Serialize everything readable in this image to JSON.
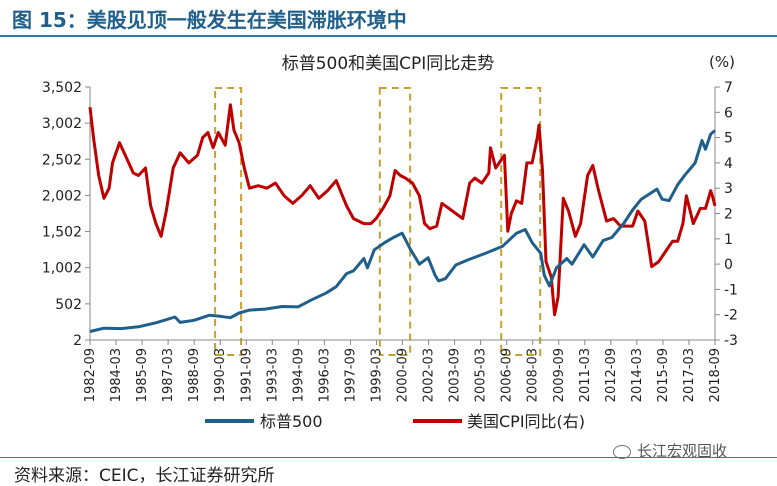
{
  "figure_title": "图 15：美股见顶一般发生在美国滞胀环境中",
  "source_text": "资料来源：CEIC，长江证券研究所",
  "watermark_text": "长江宏观固收",
  "chart_data": {
    "type": "line",
    "title": "标普500和美国CPI同比走势",
    "y2_unit": "(%)",
    "y_ticks": [
      "3,502",
      "3,002",
      "2,502",
      "2,002",
      "1,502",
      "1,002",
      "502",
      "2"
    ],
    "y2_ticks": [
      "7",
      "6",
      "5",
      "4",
      "3",
      "2",
      "1",
      "0",
      "-1",
      "-2",
      "-3"
    ],
    "ylim": [
      2,
      3502
    ],
    "y2lim": [
      -3,
      7
    ],
    "x_ticks": [
      "1982-09",
      "1984-03",
      "1985-09",
      "1987-03",
      "1988-09",
      "1990-03",
      "1991-09",
      "1993-03",
      "1994-09",
      "1996-03",
      "1997-09",
      "1999-03",
      "2000-09",
      "2002-03",
      "2003-09",
      "2005-03",
      "2006-09",
      "2008-03",
      "2009-09",
      "2011-03",
      "2012-09",
      "2014-03",
      "2015-09",
      "2017-03",
      "2018-09"
    ],
    "highlight_ranges": [
      [
        "1989-12",
        "1991-06"
      ],
      [
        "1999-06",
        "2001-03"
      ],
      [
        "2006-06",
        "2008-09"
      ]
    ],
    "series": [
      {
        "name": "标普500",
        "axis": "left",
        "color": "#1f5f8b",
        "points": [
          [
            1982.7,
            120
          ],
          [
            1983.5,
            165
          ],
          [
            1984.5,
            160
          ],
          [
            1985.5,
            185
          ],
          [
            1986.5,
            240
          ],
          [
            1987.6,
            320
          ],
          [
            1987.9,
            245
          ],
          [
            1988.7,
            275
          ],
          [
            1989.6,
            345
          ],
          [
            1990.2,
            330
          ],
          [
            1990.8,
            310
          ],
          [
            1991.3,
            375
          ],
          [
            1991.9,
            415
          ],
          [
            1992.8,
            430
          ],
          [
            1993.8,
            465
          ],
          [
            1994.7,
            460
          ],
          [
            1995.5,
            560
          ],
          [
            1996.3,
            650
          ],
          [
            1996.9,
            740
          ],
          [
            1997.5,
            920
          ],
          [
            1997.9,
            960
          ],
          [
            1998.5,
            1130
          ],
          [
            1998.7,
            1000
          ],
          [
            1999.1,
            1250
          ],
          [
            1999.7,
            1350
          ],
          [
            2000.2,
            1420
          ],
          [
            2000.7,
            1480
          ],
          [
            2001.2,
            1250
          ],
          [
            2001.7,
            1050
          ],
          [
            2002.2,
            1140
          ],
          [
            2002.6,
            900
          ],
          [
            2002.8,
            820
          ],
          [
            2003.2,
            850
          ],
          [
            2003.8,
            1040
          ],
          [
            2004.5,
            1110
          ],
          [
            2005.5,
            1200
          ],
          [
            2006.5,
            1300
          ],
          [
            2007.3,
            1480
          ],
          [
            2007.8,
            1530
          ],
          [
            2008.2,
            1350
          ],
          [
            2008.7,
            1200
          ],
          [
            2008.9,
            900
          ],
          [
            2009.2,
            750
          ],
          [
            2009.6,
            1000
          ],
          [
            2010.2,
            1130
          ],
          [
            2010.5,
            1050
          ],
          [
            2011.2,
            1320
          ],
          [
            2011.7,
            1150
          ],
          [
            2012.3,
            1380
          ],
          [
            2012.8,
            1420
          ],
          [
            2013.5,
            1620
          ],
          [
            2014.0,
            1800
          ],
          [
            2014.5,
            1950
          ],
          [
            2015.4,
            2090
          ],
          [
            2015.7,
            1950
          ],
          [
            2016.1,
            1930
          ],
          [
            2016.6,
            2150
          ],
          [
            2017.0,
            2280
          ],
          [
            2017.6,
            2450
          ],
          [
            2018.0,
            2760
          ],
          [
            2018.2,
            2640
          ],
          [
            2018.5,
            2850
          ],
          [
            2018.75,
            2900
          ]
        ]
      },
      {
        "name": "美国CPI同比(右)",
        "axis": "right",
        "color": "#c00000",
        "points": [
          [
            1982.7,
            6.2
          ],
          [
            1982.9,
            5.0
          ],
          [
            1983.2,
            3.5
          ],
          [
            1983.5,
            2.6
          ],
          [
            1983.8,
            3.0
          ],
          [
            1984.0,
            4.0
          ],
          [
            1984.4,
            4.8
          ],
          [
            1984.8,
            4.2
          ],
          [
            1985.2,
            3.6
          ],
          [
            1985.5,
            3.5
          ],
          [
            1985.9,
            3.8
          ],
          [
            1986.2,
            2.3
          ],
          [
            1986.5,
            1.6
          ],
          [
            1986.8,
            1.1
          ],
          [
            1987.1,
            2.1
          ],
          [
            1987.5,
            3.8
          ],
          [
            1987.9,
            4.4
          ],
          [
            1988.4,
            4.0
          ],
          [
            1988.9,
            4.3
          ],
          [
            1989.2,
            5.0
          ],
          [
            1989.5,
            5.2
          ],
          [
            1989.8,
            4.6
          ],
          [
            1990.1,
            5.2
          ],
          [
            1990.5,
            4.7
          ],
          [
            1990.8,
            6.3
          ],
          [
            1991.0,
            5.3
          ],
          [
            1991.3,
            4.8
          ],
          [
            1991.6,
            3.8
          ],
          [
            1991.9,
            3.0
          ],
          [
            1992.4,
            3.1
          ],
          [
            1992.9,
            3.0
          ],
          [
            1993.4,
            3.2
          ],
          [
            1993.9,
            2.7
          ],
          [
            1994.4,
            2.4
          ],
          [
            1994.9,
            2.7
          ],
          [
            1995.4,
            3.1
          ],
          [
            1995.9,
            2.6
          ],
          [
            1996.4,
            2.9
          ],
          [
            1996.9,
            3.3
          ],
          [
            1997.5,
            2.3
          ],
          [
            1997.9,
            1.8
          ],
          [
            1998.5,
            1.6
          ],
          [
            1998.9,
            1.6
          ],
          [
            1999.2,
            1.8
          ],
          [
            1999.6,
            2.2
          ],
          [
            2000.0,
            2.7
          ],
          [
            2000.3,
            3.7
          ],
          [
            2000.6,
            3.5
          ],
          [
            2000.9,
            3.4
          ],
          [
            2001.3,
            3.2
          ],
          [
            2001.7,
            2.7
          ],
          [
            2002.0,
            1.6
          ],
          [
            2002.3,
            1.4
          ],
          [
            2002.7,
            1.5
          ],
          [
            2003.0,
            2.4
          ],
          [
            2003.4,
            2.2
          ],
          [
            2003.8,
            2.0
          ],
          [
            2004.2,
            1.8
          ],
          [
            2004.6,
            3.2
          ],
          [
            2004.9,
            3.4
          ],
          [
            2005.3,
            3.2
          ],
          [
            2005.7,
            3.6
          ],
          [
            2005.8,
            4.6
          ],
          [
            2006.1,
            3.8
          ],
          [
            2006.4,
            4.1
          ],
          [
            2006.6,
            4.3
          ],
          [
            2006.8,
            1.3
          ],
          [
            2007.0,
            2.0
          ],
          [
            2007.3,
            2.5
          ],
          [
            2007.6,
            2.4
          ],
          [
            2007.9,
            4.0
          ],
          [
            2008.2,
            4.0
          ],
          [
            2008.5,
            5.0
          ],
          [
            2008.6,
            5.5
          ],
          [
            2008.8,
            3.7
          ],
          [
            2009.0,
            0.1
          ],
          [
            2009.3,
            -0.5
          ],
          [
            2009.5,
            -2.0
          ],
          [
            2009.7,
            -1.3
          ],
          [
            2010.0,
            2.6
          ],
          [
            2010.3,
            2.1
          ],
          [
            2010.7,
            1.1
          ],
          [
            2011.0,
            1.6
          ],
          [
            2011.4,
            3.5
          ],
          [
            2011.7,
            3.9
          ],
          [
            2012.0,
            3.0
          ],
          [
            2012.5,
            1.7
          ],
          [
            2012.9,
            1.8
          ],
          [
            2013.3,
            1.5
          ],
          [
            2013.7,
            1.5
          ],
          [
            2014.0,
            1.5
          ],
          [
            2014.3,
            2.1
          ],
          [
            2014.7,
            1.7
          ],
          [
            2014.9,
            0.8
          ],
          [
            2015.1,
            -0.1
          ],
          [
            2015.5,
            0.1
          ],
          [
            2015.9,
            0.5
          ],
          [
            2016.3,
            0.9
          ],
          [
            2016.6,
            0.9
          ],
          [
            2016.9,
            1.6
          ],
          [
            2017.1,
            2.7
          ],
          [
            2017.5,
            1.6
          ],
          [
            2017.9,
            2.2
          ],
          [
            2018.2,
            2.2
          ],
          [
            2018.5,
            2.9
          ],
          [
            2018.6,
            2.7
          ],
          [
            2018.75,
            2.3
          ]
        ]
      }
    ]
  }
}
